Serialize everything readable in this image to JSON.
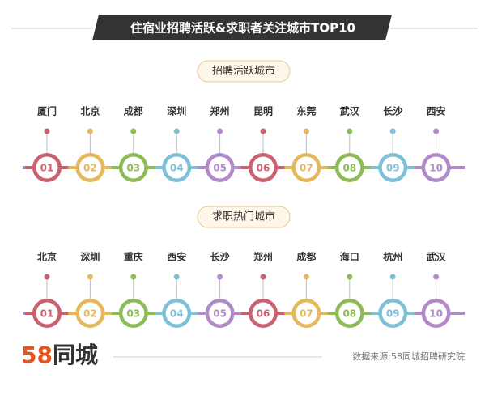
{
  "header": {
    "title": "住宿业招聘活跃&求职者关注城市TOP10"
  },
  "sections": [
    {
      "label": "招聘活跃城市",
      "items": [
        {
          "rank": "01",
          "city": "厦门"
        },
        {
          "rank": "02",
          "city": "北京"
        },
        {
          "rank": "03",
          "city": "成都"
        },
        {
          "rank": "04",
          "city": "深圳"
        },
        {
          "rank": "05",
          "city": "郑州"
        },
        {
          "rank": "06",
          "city": "昆明"
        },
        {
          "rank": "07",
          "city": "东莞"
        },
        {
          "rank": "08",
          "city": "武汉"
        },
        {
          "rank": "09",
          "city": "长沙"
        },
        {
          "rank": "10",
          "city": "西安"
        }
      ]
    },
    {
      "label": "求职热门城市",
      "items": [
        {
          "rank": "01",
          "city": "北京"
        },
        {
          "rank": "02",
          "city": "深圳"
        },
        {
          "rank": "03",
          "city": "重庆"
        },
        {
          "rank": "04",
          "city": "西安"
        },
        {
          "rank": "05",
          "city": "长沙"
        },
        {
          "rank": "06",
          "city": "郑州"
        },
        {
          "rank": "07",
          "city": "成都"
        },
        {
          "rank": "08",
          "city": "海口"
        },
        {
          "rank": "09",
          "city": "杭州"
        },
        {
          "rank": "10",
          "city": "武汉"
        }
      ]
    }
  ],
  "footer": {
    "logo_number": "58",
    "logo_name": "同城",
    "source": "数据来源:58同城招聘研究院"
  }
}
